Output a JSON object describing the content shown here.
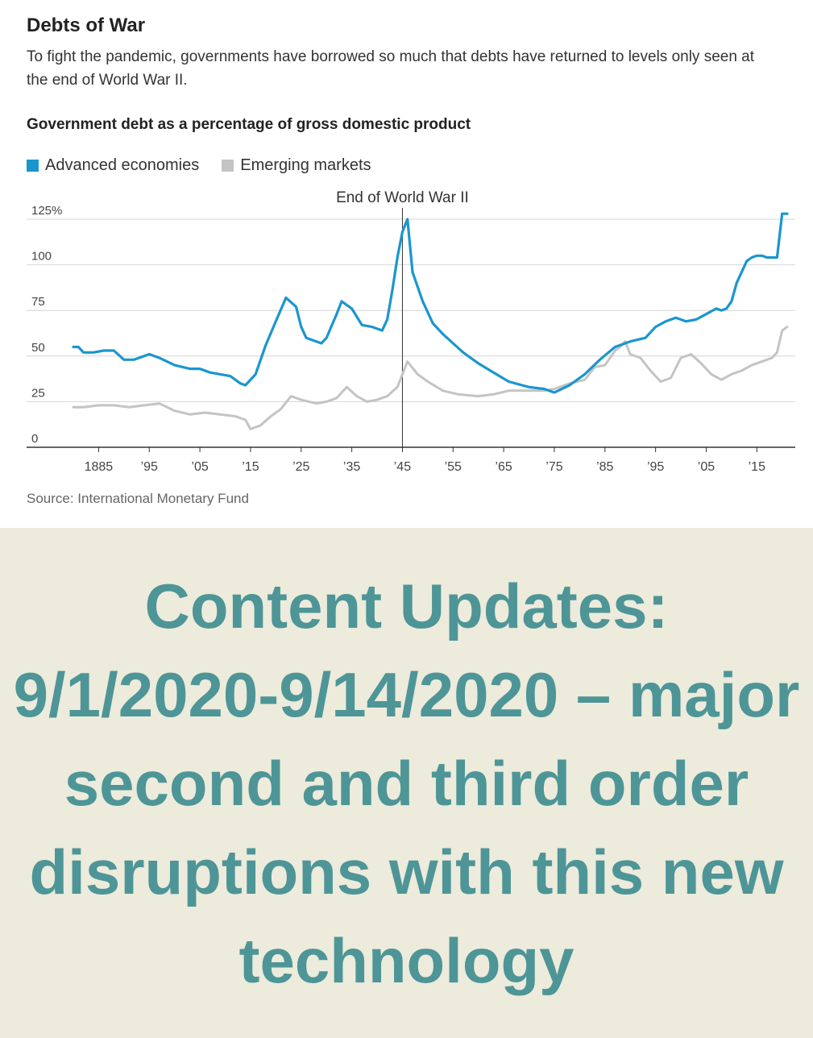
{
  "header": {
    "title": "Debts of War",
    "subtitle": "To fight the pandemic, governments have borrowed so much that debts have returned to levels only seen at the end of World War II.",
    "chart_heading": "Government debt as a percentage of gross domestic product"
  },
  "footer": {
    "source": "Source: International Monetary Fund"
  },
  "banner": {
    "text": "Content Updates: 9/1/2020-9/14/2020 – major second and third order disruptions with this new technology"
  },
  "colors": {
    "advanced": "#1a96cf",
    "emerging": "#c4c4c4",
    "banner_bg": "#ecebdc",
    "banner_text": "#4e9597"
  },
  "chart_data": {
    "type": "line",
    "title": "Government debt as a percentage of gross domestic product",
    "xlim": [
      1880,
      2021
    ],
    "ylim": [
      0,
      125
    ],
    "yticks": [
      0,
      25,
      50,
      75,
      100,
      125
    ],
    "ytick_labels": [
      "0",
      "25",
      "50",
      "75",
      "100",
      "125%"
    ],
    "xticks": [
      1885,
      1895,
      1905,
      1915,
      1925,
      1935,
      1945,
      1955,
      1965,
      1975,
      1985,
      1995,
      2005,
      2015
    ],
    "xtick_labels": [
      "1885",
      "’95",
      "’05",
      "’15",
      "’25",
      "’35",
      "’45",
      "’55",
      "’65",
      "’75",
      "’85",
      "’95",
      "’05",
      "’15"
    ],
    "grid": true,
    "legend_position": "top-left",
    "annotations": [
      {
        "x": 1945,
        "label": "End of World War II"
      }
    ],
    "series": [
      {
        "name": "Advanced economies",
        "color": "#1a96cf",
        "x": [
          1880,
          1881,
          1882,
          1884,
          1886,
          1888,
          1890,
          1892,
          1894,
          1895,
          1897,
          1900,
          1903,
          1905,
          1907,
          1909,
          1911,
          1913,
          1914,
          1916,
          1918,
          1920,
          1922,
          1924,
          1925,
          1926,
          1928,
          1929,
          1930,
          1932,
          1933,
          1935,
          1937,
          1939,
          1941,
          1942,
          1943,
          1944,
          1945,
          1946,
          1947,
          1949,
          1951,
          1953,
          1955,
          1957,
          1960,
          1963,
          1966,
          1970,
          1973,
          1975,
          1978,
          1981,
          1984,
          1987,
          1990,
          1993,
          1995,
          1997,
          1999,
          2001,
          2003,
          2005,
          2007,
          2008,
          2009,
          2010,
          2011,
          2013,
          2014,
          2015,
          2016,
          2017,
          2018,
          2019,
          2020,
          2021
        ],
        "values": [
          55,
          55,
          52,
          52,
          53,
          53,
          48,
          48,
          50,
          51,
          49,
          45,
          43,
          43,
          41,
          40,
          39,
          35,
          34,
          40,
          56,
          69,
          82,
          77,
          66,
          60,
          58,
          57,
          60,
          73,
          80,
          76,
          67,
          66,
          64,
          70,
          86,
          104,
          118,
          125,
          96,
          80,
          68,
          62,
          57,
          52,
          46,
          41,
          36,
          33,
          32,
          30,
          34,
          40,
          48,
          55,
          58,
          60,
          66,
          69,
          71,
          69,
          70,
          73,
          76,
          75,
          76,
          80,
          90,
          102,
          104,
          105,
          105,
          104,
          104,
          104,
          128,
          128
        ]
      },
      {
        "name": "Emerging markets",
        "color": "#c4c4c4",
        "x": [
          1880,
          1882,
          1885,
          1888,
          1891,
          1894,
          1897,
          1900,
          1903,
          1906,
          1909,
          1912,
          1914,
          1915,
          1917,
          1919,
          1921,
          1923,
          1925,
          1928,
          1930,
          1932,
          1934,
          1936,
          1938,
          1940,
          1942,
          1944,
          1945,
          1946,
          1948,
          1950,
          1953,
          1956,
          1960,
          1963,
          1966,
          1970,
          1973,
          1975,
          1978,
          1981,
          1983,
          1985,
          1987,
          1988,
          1989,
          1990,
          1992,
          1994,
          1996,
          1998,
          2000,
          2002,
          2004,
          2006,
          2008,
          2010,
          2012,
          2014,
          2016,
          2018,
          2019,
          2020,
          2021
        ],
        "values": [
          22,
          22,
          23,
          23,
          22,
          23,
          24,
          20,
          18,
          19,
          18,
          17,
          15,
          10,
          12,
          17,
          21,
          28,
          26,
          24,
          25,
          27,
          33,
          28,
          25,
          26,
          28,
          33,
          40,
          47,
          40,
          36,
          31,
          29,
          28,
          29,
          31,
          31,
          31,
          32,
          35,
          37,
          44,
          45,
          53,
          55,
          58,
          51,
          49,
          42,
          36,
          38,
          49,
          51,
          46,
          40,
          37,
          40,
          42,
          45,
          47,
          49,
          52,
          64,
          66
        ]
      }
    ]
  }
}
